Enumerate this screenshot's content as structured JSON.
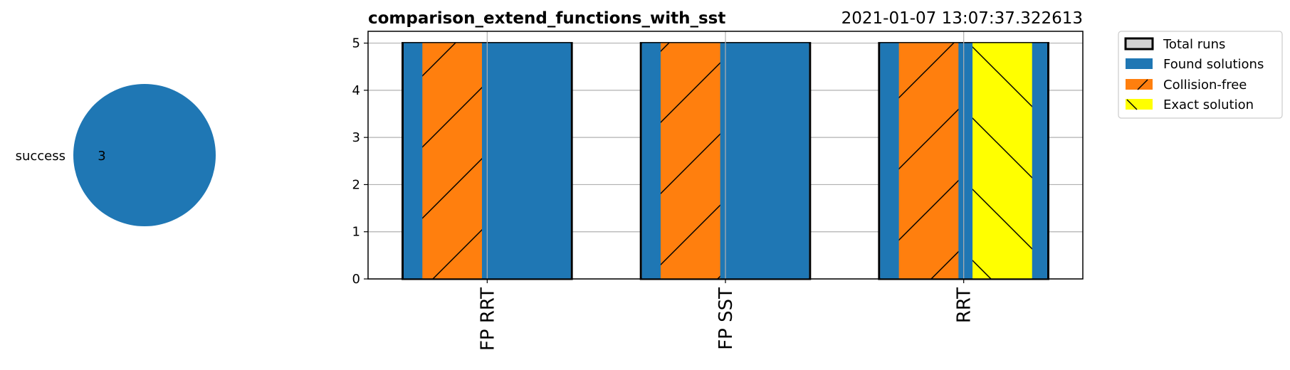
{
  "pie_chart": {
    "type": "pie",
    "slices": [
      {
        "label": "success",
        "value": 3,
        "value_label": "3",
        "color": "#1f77b4"
      }
    ]
  },
  "chart_data": {
    "type": "bar",
    "title": "comparison_extend_functions_with_sst",
    "timestamp": "2021-01-07 13:07:37.322613",
    "categories": [
      "FP RRT",
      "FP SST",
      "RRT"
    ],
    "xlabel": "",
    "ylabel": "",
    "ylim": [
      0,
      5.25
    ],
    "yticks": [
      "0",
      "1",
      "2",
      "3",
      "4",
      "5"
    ],
    "grid": true,
    "legend_position": "outside-top-right",
    "series": [
      {
        "name": "Total runs",
        "values": [
          5,
          5,
          5
        ],
        "color": "#d3d3d3",
        "edge": "#000000",
        "hatch": "none"
      },
      {
        "name": "Found solutions",
        "values": [
          5,
          5,
          5
        ],
        "color": "#1f77b4",
        "hatch": "none"
      },
      {
        "name": "Collision-free",
        "values": [
          5,
          5,
          5
        ],
        "color": "#ff7f0e",
        "hatch": "forward"
      },
      {
        "name": "Exact solution",
        "values": [
          0,
          0,
          5
        ],
        "color": "#ffff00",
        "hatch": "back"
      }
    ]
  }
}
